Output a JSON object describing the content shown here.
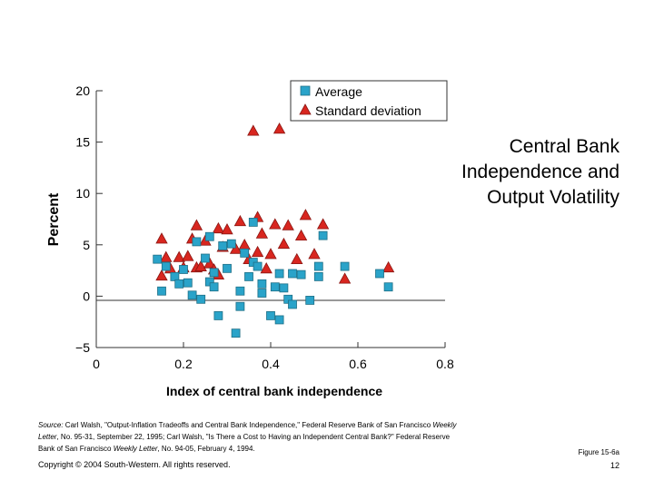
{
  "slide": {
    "title_line1": "Central Bank",
    "title_line2": "Independence and",
    "title_line3": "Output Volatility",
    "source_label": "Source:",
    "source_text_a": " Carl Walsh, \"Output-Inflation Tradeoffs and Central Bank Independence,\" Federal Reserve Bank of San Francisco ",
    "source_pub_1": "Weekly Letter",
    "source_text_b": ", No. 95-31, September 22, 1995; Carl Walsh, \"Is There a Cost to Having an Independent Central Bank?\" Federal Reserve Bank of San Francisco ",
    "source_pub_2": "Weekly Letter",
    "source_text_c": ", No. 94-05, February 4, 1994.",
    "copyright": "Copyright © 2004 South-Western. All rights reserved.",
    "figure_label": "Figure 15-6a",
    "page_number": "12"
  },
  "colors": {
    "average": "#2aa3c9",
    "stddev": "#d8261f",
    "axis": "#333333"
  },
  "chart_data": {
    "type": "scatter",
    "xlabel": "Index of central bank independence",
    "ylabel": "Percent",
    "xlim": [
      0,
      0.8
    ],
    "ylim": [
      -5,
      20
    ],
    "xticks": [
      0,
      0.2,
      0.4,
      0.6,
      0.8
    ],
    "xtick_labels": [
      "0",
      "0.2",
      "0.4",
      "0.6",
      "0.8"
    ],
    "yticks": [
      -5,
      0,
      5,
      10,
      15,
      20
    ],
    "ytick_labels": [
      "−5",
      "0",
      "5",
      "10",
      "15",
      "20"
    ],
    "zero_line": true,
    "legend_position": "top-right",
    "series": [
      {
        "name": "Average",
        "marker": "square",
        "points": [
          [
            0.14,
            3.6
          ],
          [
            0.15,
            0.5
          ],
          [
            0.16,
            2.9
          ],
          [
            0.18,
            1.9
          ],
          [
            0.19,
            1.2
          ],
          [
            0.2,
            2.6
          ],
          [
            0.21,
            1.3
          ],
          [
            0.22,
            0.1
          ],
          [
            0.23,
            5.3
          ],
          [
            0.24,
            -0.3
          ],
          [
            0.25,
            3.7
          ],
          [
            0.26,
            5.8
          ],
          [
            0.26,
            1.4
          ],
          [
            0.27,
            2.3
          ],
          [
            0.27,
            0.9
          ],
          [
            0.28,
            -1.9
          ],
          [
            0.29,
            4.9
          ],
          [
            0.3,
            2.7
          ],
          [
            0.31,
            5.1
          ],
          [
            0.32,
            -3.6
          ],
          [
            0.33,
            -1.0
          ],
          [
            0.33,
            0.5
          ],
          [
            0.34,
            4.2
          ],
          [
            0.35,
            1.9
          ],
          [
            0.36,
            7.2
          ],
          [
            0.36,
            3.3
          ],
          [
            0.37,
            2.9
          ],
          [
            0.38,
            1.2
          ],
          [
            0.38,
            0.3
          ],
          [
            0.4,
            -1.9
          ],
          [
            0.41,
            0.9
          ],
          [
            0.42,
            2.2
          ],
          [
            0.42,
            -2.3
          ],
          [
            0.43,
            0.8
          ],
          [
            0.44,
            -0.3
          ],
          [
            0.45,
            -0.8
          ],
          [
            0.45,
            2.2
          ],
          [
            0.47,
            2.1
          ],
          [
            0.49,
            -0.4
          ],
          [
            0.51,
            2.9
          ],
          [
            0.51,
            1.9
          ],
          [
            0.52,
            5.9
          ],
          [
            0.57,
            2.9
          ],
          [
            0.65,
            2.2
          ],
          [
            0.67,
            0.9
          ]
        ]
      },
      {
        "name": "Standard deviation",
        "marker": "triangle",
        "points": [
          [
            0.15,
            5.6
          ],
          [
            0.15,
            2.0
          ],
          [
            0.16,
            3.8
          ],
          [
            0.17,
            2.7
          ],
          [
            0.19,
            3.8
          ],
          [
            0.2,
            2.8
          ],
          [
            0.21,
            3.9
          ],
          [
            0.22,
            5.6
          ],
          [
            0.23,
            6.9
          ],
          [
            0.23,
            2.8
          ],
          [
            0.24,
            2.9
          ],
          [
            0.25,
            5.4
          ],
          [
            0.26,
            3.2
          ],
          [
            0.27,
            2.6
          ],
          [
            0.28,
            2.1
          ],
          [
            0.28,
            6.6
          ],
          [
            0.29,
            4.8
          ],
          [
            0.3,
            6.5
          ],
          [
            0.32,
            4.6
          ],
          [
            0.33,
            7.3
          ],
          [
            0.34,
            5.0
          ],
          [
            0.35,
            3.6
          ],
          [
            0.36,
            16.1
          ],
          [
            0.37,
            4.3
          ],
          [
            0.37,
            7.7
          ],
          [
            0.38,
            6.1
          ],
          [
            0.39,
            2.7
          ],
          [
            0.4,
            4.1
          ],
          [
            0.41,
            7.0
          ],
          [
            0.42,
            16.3
          ],
          [
            0.43,
            5.1
          ],
          [
            0.44,
            6.9
          ],
          [
            0.46,
            3.6
          ],
          [
            0.47,
            5.9
          ],
          [
            0.48,
            7.9
          ],
          [
            0.5,
            4.1
          ],
          [
            0.52,
            7.0
          ],
          [
            0.57,
            1.7
          ],
          [
            0.67,
            2.8
          ]
        ]
      }
    ]
  }
}
